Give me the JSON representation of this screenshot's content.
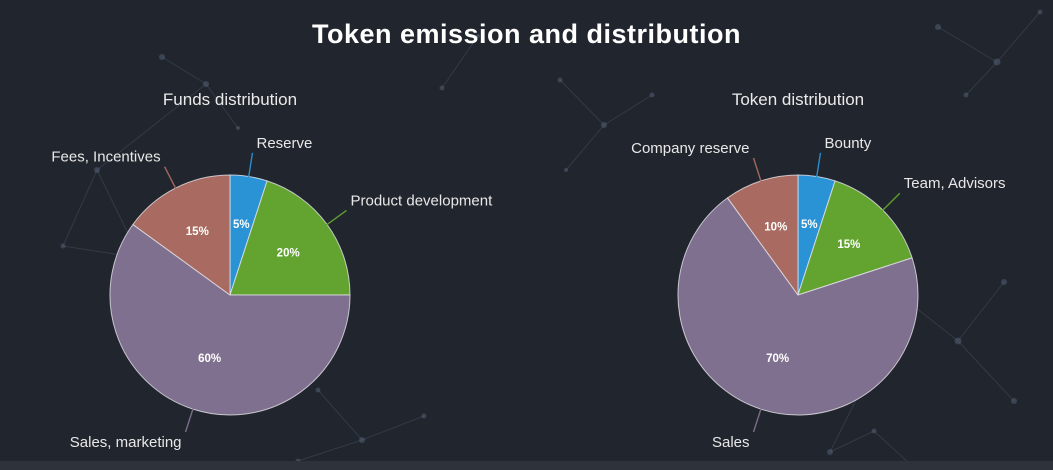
{
  "page": {
    "title": "Token emission and distribution"
  },
  "chart_data": [
    {
      "type": "pie",
      "title": "Funds distribution",
      "legend": "none",
      "label_style": "outside-callout",
      "order": "clockwise-from-top",
      "slices": [
        {
          "label": "Reserve",
          "value": 5,
          "percent_label": "5%",
          "color": "#2a93d5"
        },
        {
          "label": "Product development",
          "value": 20,
          "percent_label": "20%",
          "color": "#63a431"
        },
        {
          "label": "Sales, marketing",
          "value": 60,
          "percent_label": "60%",
          "color": "#80708f"
        },
        {
          "label": "Fees, Incentives",
          "value": 15,
          "percent_label": "15%",
          "color": "#a96b61"
        }
      ]
    },
    {
      "type": "pie",
      "title": "Token distribution",
      "legend": "none",
      "label_style": "outside-callout",
      "order": "clockwise-from-top",
      "slices": [
        {
          "label": "Bounty",
          "value": 5,
          "percent_label": "5%",
          "color": "#2a93d5"
        },
        {
          "label": "Team, Advisors",
          "value": 15,
          "percent_label": "15%",
          "color": "#63a431"
        },
        {
          "label": "Sales",
          "value": 70,
          "percent_label": "70%",
          "color": "#80708f"
        },
        {
          "label": "Company reserve",
          "value": 10,
          "percent_label": "10%",
          "color": "#a96b61"
        }
      ]
    }
  ]
}
